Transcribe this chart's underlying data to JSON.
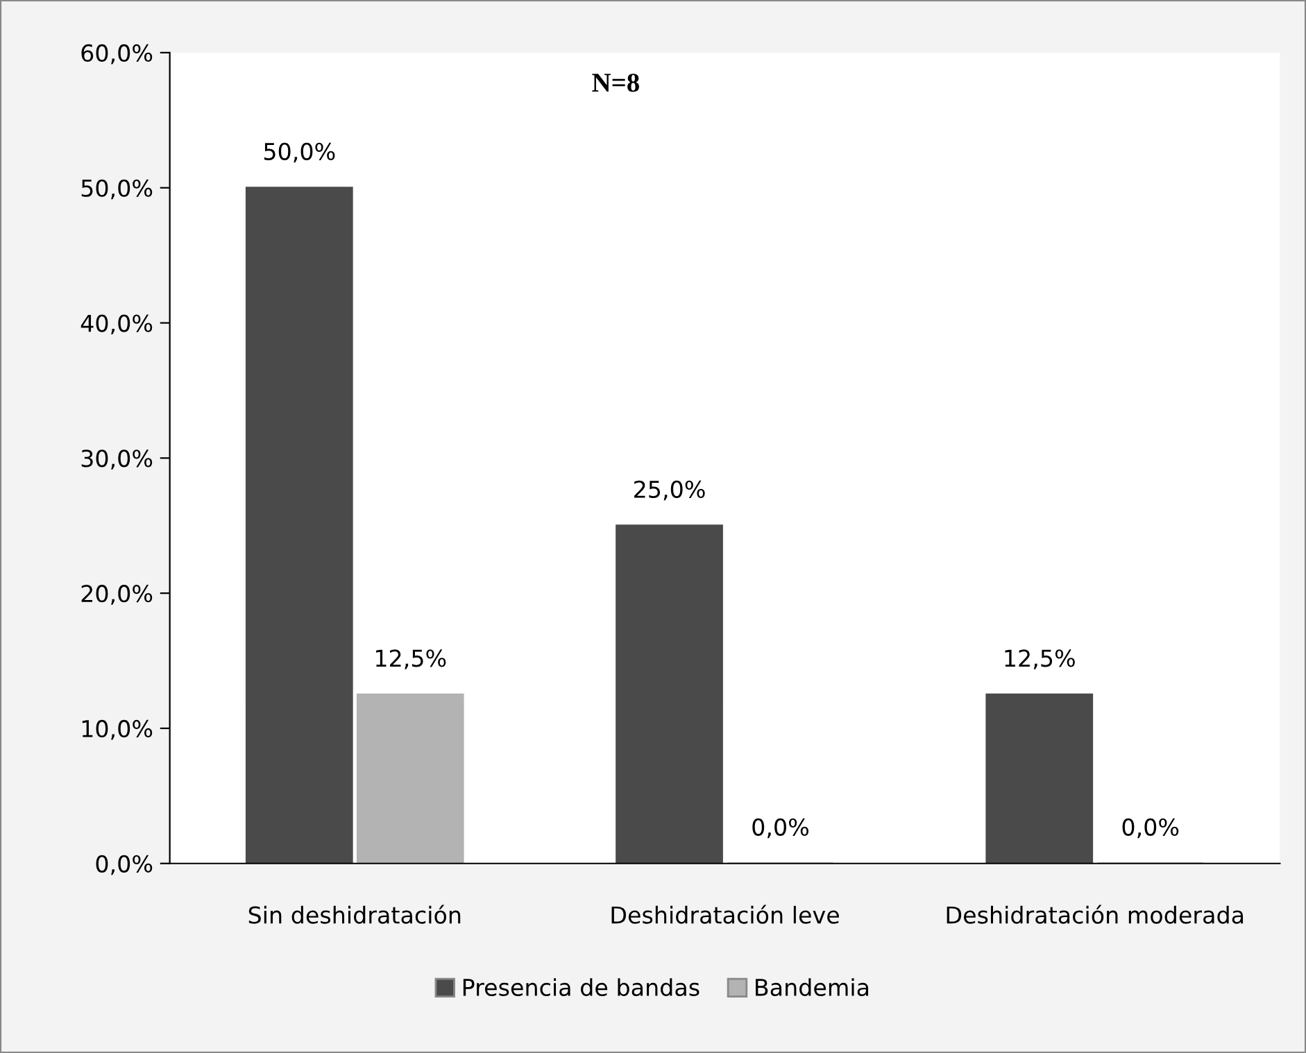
{
  "chart_data": {
    "type": "bar",
    "categories": [
      "Sin deshidratación",
      "Deshidratación leve",
      "Deshidratación moderada"
    ],
    "series": [
      {
        "name": "Presencia de bandas",
        "color": "#4a4a4a",
        "values": [
          50.0,
          25.0,
          12.5
        ],
        "value_labels": [
          "50,0%",
          "25,0%",
          "12,5%"
        ]
      },
      {
        "name": "Bandemia",
        "color": "#b3b3b3",
        "values": [
          12.5,
          0.0,
          0.0
        ],
        "value_labels": [
          "12,5%",
          "0,0%",
          "0,0%"
        ]
      }
    ],
    "ylim": [
      0,
      60
    ],
    "yticks": [
      {
        "value": 0,
        "label": "0,0%"
      },
      {
        "value": 10,
        "label": "10,0%"
      },
      {
        "value": 20,
        "label": "20,0%"
      },
      {
        "value": 30,
        "label": "30,0%"
      },
      {
        "value": 40,
        "label": "40,0%"
      },
      {
        "value": 50,
        "label": "50,0%"
      },
      {
        "value": 60,
        "label": "60,0%"
      }
    ],
    "annotations": [
      "N=8"
    ],
    "legend": "bottom",
    "grid": false
  }
}
